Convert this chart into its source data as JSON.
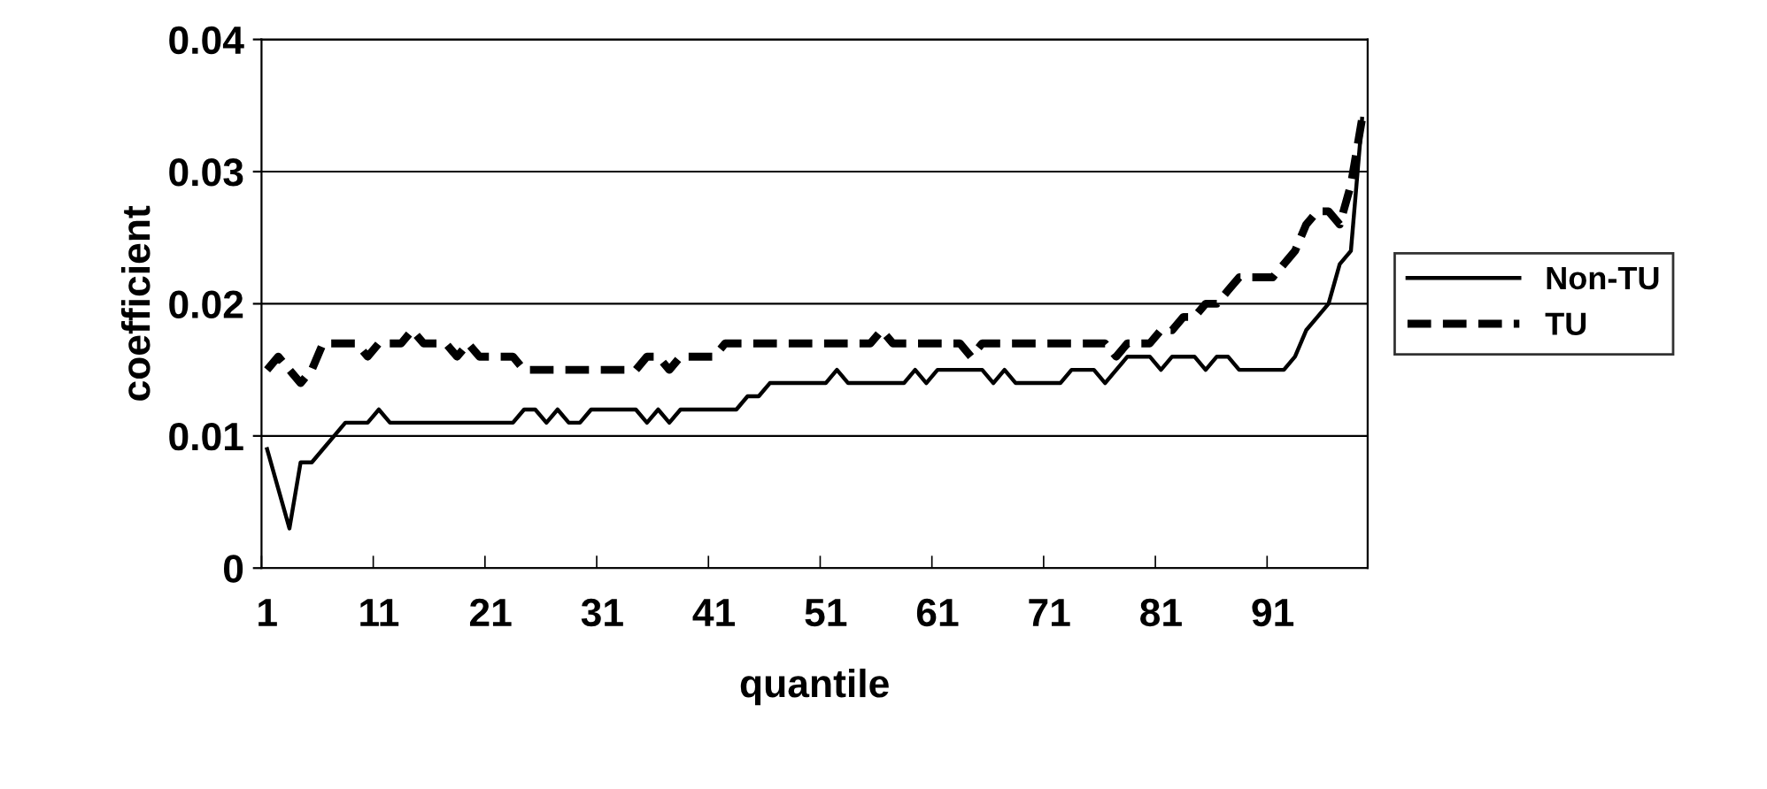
{
  "chart_data": {
    "type": "line",
    "xlabel": "quantile",
    "ylabel": "coefficient",
    "categories": [
      "1",
      null,
      null,
      null,
      null,
      null,
      null,
      null,
      null,
      null,
      "11",
      null,
      null,
      null,
      null,
      null,
      null,
      null,
      null,
      null,
      "21",
      null,
      null,
      null,
      null,
      null,
      null,
      null,
      null,
      null,
      "31",
      null,
      null,
      null,
      null,
      null,
      null,
      null,
      null,
      null,
      "41",
      null,
      null,
      null,
      null,
      null,
      null,
      null,
      null,
      null,
      "51",
      null,
      null,
      null,
      null,
      null,
      null,
      null,
      null,
      null,
      "61",
      null,
      null,
      null,
      null,
      null,
      null,
      null,
      null,
      null,
      "71",
      null,
      null,
      null,
      null,
      null,
      null,
      null,
      null,
      null,
      "81",
      null,
      null,
      null,
      null,
      null,
      null,
      null,
      null,
      null,
      "91",
      null,
      null,
      null,
      null,
      null,
      null,
      null,
      null
    ],
    "ylim": [
      0,
      0.04
    ],
    "yticks": [
      {
        "value": 0,
        "label": "0"
      },
      0.01,
      0.02,
      0.03,
      0.04
    ],
    "grid": "y",
    "legend": "right",
    "marker": "none",
    "series": [
      {
        "name": "Non-TU",
        "color": "#000000",
        "line_style": "solid",
        "values": [
          0.009,
          0.006,
          0.003,
          0.008,
          0.008,
          0.009,
          0.01,
          0.011,
          0.011,
          0.011,
          0.012,
          0.011,
          0.011,
          0.011,
          0.011,
          0.011,
          0.011,
          0.011,
          0.011,
          0.011,
          0.011,
          0.011,
          0.011,
          0.012,
          0.012,
          0.011,
          0.012,
          0.011,
          0.011,
          0.012,
          0.012,
          0.012,
          0.012,
          0.012,
          0.011,
          0.012,
          0.011,
          0.012,
          0.012,
          0.012,
          0.012,
          0.012,
          0.012,
          0.013,
          0.013,
          0.014,
          0.014,
          0.014,
          0.014,
          0.014,
          0.014,
          0.015,
          0.014,
          0.014,
          0.014,
          0.014,
          0.014,
          0.014,
          0.015,
          0.014,
          0.015,
          0.015,
          0.015,
          0.015,
          0.015,
          0.014,
          0.015,
          0.014,
          0.014,
          0.014,
          0.014,
          0.014,
          0.015,
          0.015,
          0.015,
          0.014,
          0.015,
          0.016,
          0.016,
          0.016,
          0.015,
          0.016,
          0.016,
          0.016,
          0.015,
          0.016,
          0.016,
          0.015,
          0.015,
          0.015,
          0.015,
          0.015,
          0.016,
          0.018,
          0.019,
          0.02,
          0.023,
          0.024,
          0.034
        ]
      },
      {
        "name": "TU",
        "color": "#000000",
        "line_style": "dashed",
        "values": [
          0.015,
          0.016,
          0.015,
          0.014,
          0.015,
          0.017,
          0.017,
          0.017,
          0.017,
          0.016,
          0.017,
          0.017,
          0.017,
          0.018,
          0.017,
          0.017,
          0.017,
          0.016,
          0.017,
          0.016,
          0.016,
          0.016,
          0.016,
          0.015,
          0.015,
          0.015,
          0.015,
          0.015,
          0.015,
          0.015,
          0.015,
          0.015,
          0.015,
          0.015,
          0.016,
          0.016,
          0.015,
          0.016,
          0.016,
          0.016,
          0.016,
          0.017,
          0.017,
          0.017,
          0.017,
          0.017,
          0.017,
          0.017,
          0.017,
          0.017,
          0.017,
          0.017,
          0.017,
          0.017,
          0.017,
          0.018,
          0.017,
          0.017,
          0.017,
          0.017,
          0.017,
          0.017,
          0.017,
          0.016,
          0.017,
          0.017,
          0.017,
          0.017,
          0.017,
          0.017,
          0.017,
          0.017,
          0.017,
          0.017,
          0.017,
          0.017,
          0.016,
          0.017,
          0.017,
          0.017,
          0.018,
          0.018,
          0.019,
          0.019,
          0.02,
          0.02,
          0.021,
          0.022,
          0.022,
          0.022,
          0.022,
          0.023,
          0.024,
          0.026,
          0.027,
          0.027,
          0.026,
          0.029,
          0.034
        ]
      }
    ]
  }
}
